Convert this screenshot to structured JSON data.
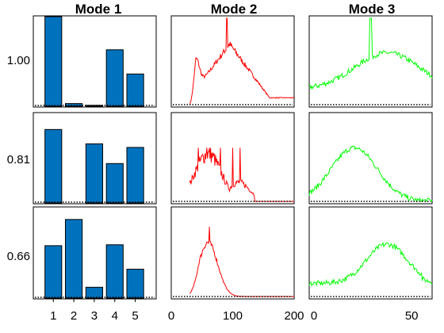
{
  "chart_data": {
    "type": "bar",
    "colors": {
      "bar": "#0072BD",
      "mode2": "#FF0000",
      "mode3": "#00FF00",
      "baseline": "#000000"
    },
    "titles": [
      "Mode 1",
      "Mode 2",
      "Mode 3"
    ],
    "row_labels": [
      "1.00",
      "0.81",
      "0.66"
    ],
    "mode1": {
      "categories": [
        1,
        2,
        3,
        4,
        5
      ],
      "ylim": [
        0,
        1
      ],
      "rows": [
        [
          1.0,
          0.03,
          0.01,
          0.63,
          0.36
        ],
        [
          0.82,
          0.0,
          0.66,
          0.44,
          0.62
        ],
        [
          0.58,
          0.87,
          0.12,
          0.59,
          0.32
        ]
      ]
    },
    "mode2": {
      "xlim": [
        0,
        200
      ],
      "xticks": [
        0,
        100,
        200
      ],
      "ylim": [
        0,
        1
      ]
    },
    "mode3": {
      "xlim": [
        0,
        60
      ],
      "xticks": [
        0,
        50
      ],
      "ylim": [
        0,
        1
      ]
    },
    "baseline": {
      "style": "dotted",
      "value": 0
    }
  }
}
